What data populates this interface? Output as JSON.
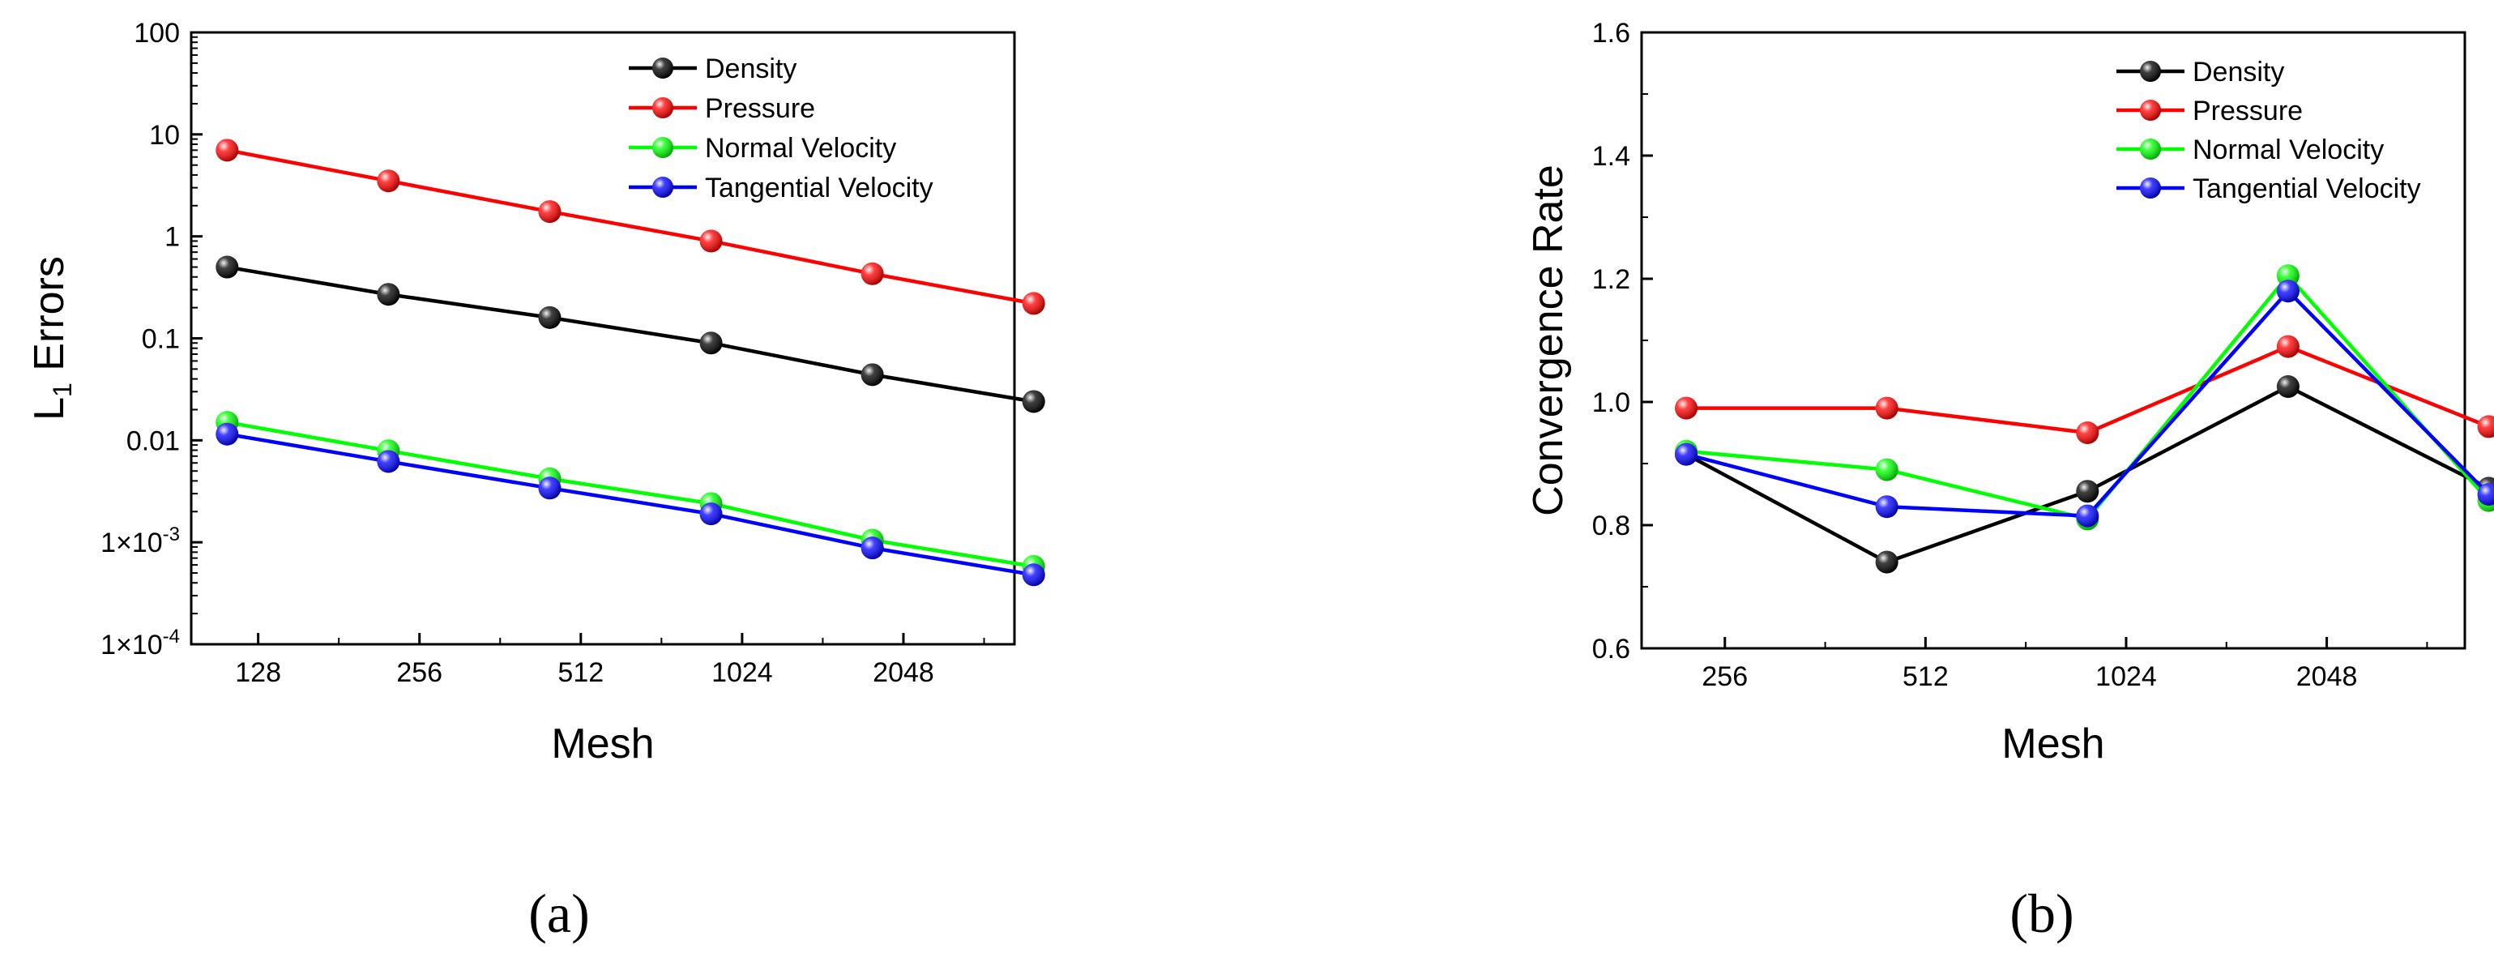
{
  "chart_data": [
    {
      "type": "line",
      "panel": "(a)",
      "xlabel": "Mesh",
      "ylabel": "L",
      "ylabel_sub": "1",
      "ylabel_rest": " Errors",
      "xscale": "log2",
      "yscale": "log10",
      "xlim": [
        96,
        3300
      ],
      "ylim": [
        0.0001,
        100
      ],
      "x_ticks": [
        128,
        256,
        512,
        1024,
        2048
      ],
      "x_tick_labels": [
        "128",
        "256",
        "512",
        "1024",
        "2048"
      ],
      "y_ticks": [
        {
          "value": 100,
          "label": "100"
        },
        {
          "value": 10,
          "label": "10"
        },
        {
          "value": 1,
          "label": "1"
        },
        {
          "value": 0.1,
          "label": "0.1"
        },
        {
          "value": 0.01,
          "label": "0.01"
        },
        {
          "value": 0.001,
          "label_base": "1×10",
          "label_exp": "-3"
        },
        {
          "value": 0.0001,
          "label_base": "1×10",
          "label_exp": "-4"
        }
      ],
      "x": [
        112,
        224,
        448,
        896,
        1792,
        3584
      ],
      "series": [
        {
          "name": "Density",
          "color": "#000000",
          "values": [
            0.5,
            0.27,
            0.16,
            0.09,
            0.044,
            0.024
          ]
        },
        {
          "name": "Pressure",
          "color": "#ff0000",
          "values": [
            7.0,
            3.5,
            1.75,
            0.9,
            0.43,
            0.22
          ]
        },
        {
          "name": "Normal Velocity",
          "color": "#00ff00",
          "values": [
            0.015,
            0.0079,
            0.0042,
            0.0024,
            0.00105,
            0.00058
          ]
        },
        {
          "name": "Tangential Velocity",
          "color": "#0000ff",
          "values": [
            0.0115,
            0.0062,
            0.0034,
            0.0019,
            0.00088,
            0.00048
          ]
        }
      ],
      "legend": "top-right"
    },
    {
      "type": "line",
      "panel": "(b)",
      "xlabel": "Mesh",
      "ylabel": "Convergence Rate",
      "xscale": "log2",
      "yscale": "linear",
      "xlim": [
        192,
        3300
      ],
      "ylim": [
        0.6,
        1.6
      ],
      "x_ticks": [
        256,
        512,
        1024,
        2048
      ],
      "x_tick_labels": [
        "256",
        "512",
        "1024",
        "2048"
      ],
      "y_ticks": [
        {
          "value": 0.6,
          "label": "0.6"
        },
        {
          "value": 0.8,
          "label": "0.8"
        },
        {
          "value": 1.0,
          "label": "1.0"
        },
        {
          "value": 1.2,
          "label": "1.2"
        },
        {
          "value": 1.4,
          "label": "1.4"
        },
        {
          "value": 1.6,
          "label": "1.6"
        }
      ],
      "x": [
        224,
        448,
        896,
        1792,
        3584
      ],
      "series": [
        {
          "name": "Density",
          "color": "#000000",
          "values": [
            0.915,
            0.74,
            0.855,
            1.025,
            0.86
          ]
        },
        {
          "name": "Pressure",
          "color": "#ff0000",
          "values": [
            0.99,
            0.99,
            0.95,
            1.09,
            0.96
          ]
        },
        {
          "name": "Normal Velocity",
          "color": "#00ff00",
          "values": [
            0.92,
            0.89,
            0.81,
            1.205,
            0.84
          ]
        },
        {
          "name": "Tangential Velocity",
          "color": "#0000ff",
          "values": [
            0.915,
            0.83,
            0.815,
            1.18,
            0.85
          ]
        }
      ],
      "legend": "top-right"
    }
  ]
}
